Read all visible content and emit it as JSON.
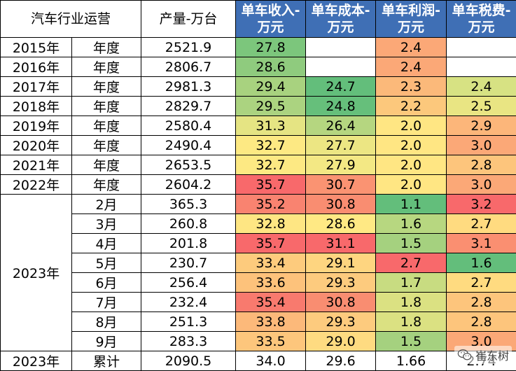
{
  "colors": {
    "header_blue": "#3f6fb5",
    "green": "#63be7b",
    "yellow": "#ffeb84",
    "red": "#f8696b"
  },
  "header": {
    "col1": "汽车行业运营",
    "col2": "产量-万台",
    "col3": "单车收入-万元",
    "col4": "单车成本-万元",
    "col5": "单车利润-万元",
    "col6": "单车税费-万元"
  },
  "rows": [
    {
      "year": "2015年",
      "period": "年度",
      "output": "2521.9",
      "revenue": "27.8",
      "cost": "",
      "profit": "2.4",
      "tax": "",
      "c_rev": "#7cc67c",
      "c_cost": "#ffffff",
      "c_profit": "#fba877",
      "c_tax": "#ffffff"
    },
    {
      "year": "2016年",
      "period": "年度",
      "output": "2806.7",
      "revenue": "28.6",
      "cost": "",
      "profit": "2.4",
      "tax": "",
      "c_rev": "#8fcb7e",
      "c_cost": "#ffffff",
      "c_profit": "#fba877",
      "c_tax": "#ffffff"
    },
    {
      "year": "2017年",
      "period": "年度",
      "output": "2981.3",
      "revenue": "29.4",
      "cost": "24.7",
      "profit": "2.3",
      "tax": "2.4",
      "c_rev": "#a8d27f",
      "c_cost": "#63be7b",
      "c_profit": "#fbb97a",
      "c_tax": "#d7e283"
    },
    {
      "year": "2018年",
      "period": "年度",
      "output": "2829.7",
      "revenue": "29.5",
      "cost": "24.8",
      "profit": "2.2",
      "tax": "2.5",
      "c_rev": "#abd380",
      "c_cost": "#66bf7b",
      "c_profit": "#fcc87c",
      "c_tax": "#e9e583"
    },
    {
      "year": "2019年",
      "period": "年度",
      "output": "2580.4",
      "revenue": "31.3",
      "cost": "26.4",
      "profit": "2.0",
      "tax": "2.9",
      "c_rev": "#e5e483",
      "c_cost": "#b5d680",
      "c_profit": "#ffe683",
      "c_tax": "#fcb67a"
    },
    {
      "year": "2020年",
      "period": "年度",
      "output": "2490.4",
      "revenue": "32.7",
      "cost": "27.7",
      "profit": "2.0",
      "tax": "3.0",
      "c_rev": "#fde983",
      "c_cost": "#ece683",
      "c_profit": "#ffe683",
      "c_tax": "#fba877"
    },
    {
      "year": "2021年",
      "period": "年度",
      "output": "2653.5",
      "revenue": "32.7",
      "cost": "27.9",
      "profit": "2.0",
      "tax": "2.8",
      "c_rev": "#fde983",
      "c_cost": "#f3e884",
      "c_profit": "#ffe683",
      "c_tax": "#fdc57c"
    },
    {
      "year": "2022年",
      "period": "年度",
      "output": "2604.2",
      "revenue": "35.7",
      "cost": "30.7",
      "profit": "2.0",
      "tax": "3.0",
      "c_rev": "#f8696b",
      "c_cost": "#fa9372",
      "c_profit": "#ffe683",
      "c_tax": "#fba877"
    },
    {
      "year": "2023年",
      "period": "2月",
      "output": "365.3",
      "revenue": "35.2",
      "cost": "30.8",
      "profit": "1.1",
      "tax": "3.2",
      "c_rev": "#f98370",
      "c_cost": "#f98d71",
      "c_profit": "#63be7b",
      "c_tax": "#f8696b"
    },
    {
      "year": "",
      "period": "3月",
      "output": "260.8",
      "revenue": "32.8",
      "cost": "28.6",
      "profit": "1.6",
      "tax": "2.7",
      "c_rev": "#fee683",
      "c_cost": "#ffe984",
      "c_profit": "#b7d780",
      "c_tax": "#ffdb80"
    },
    {
      "year": "",
      "period": "4月",
      "output": "201.8",
      "revenue": "35.7",
      "cost": "31.1",
      "profit": "1.5",
      "tax": "3.1",
      "c_rev": "#f8696b",
      "c_cost": "#f8696b",
      "c_profit": "#a5d17f",
      "c_tax": "#fa8f71"
    },
    {
      "year": "",
      "period": "5月",
      "output": "230.7",
      "revenue": "33.4",
      "cost": "29.1",
      "profit": "2.7",
      "tax": "1.6",
      "c_rev": "#fdcb7d",
      "c_cost": "#fed580",
      "c_profit": "#f8696b",
      "c_tax": "#63be7b"
    },
    {
      "year": "",
      "period": "6月",
      "output": "256.4",
      "revenue": "33.6",
      "cost": "29.3",
      "profit": "1.7",
      "tax": "2.7",
      "c_rev": "#fdc27b",
      "c_cost": "#fdcb7e",
      "c_profit": "#c8dc81",
      "c_tax": "#ffdb80"
    },
    {
      "year": "",
      "period": "7月",
      "output": "232.4",
      "revenue": "35.4",
      "cost": "30.8",
      "profit": "1.8",
      "tax": "2.8",
      "c_rev": "#f87a6e",
      "c_cost": "#f98d71",
      "c_profit": "#dbe182",
      "c_tax": "#fdc57c"
    },
    {
      "year": "",
      "period": "8月",
      "output": "251.3",
      "revenue": "33.8",
      "cost": "29.3",
      "profit": "1.8",
      "tax": "2.8",
      "c_rev": "#fcb97a",
      "c_cost": "#fdcb7e",
      "c_profit": "#dbe182",
      "c_tax": "#fdc57c"
    },
    {
      "year": "",
      "period": "9月",
      "output": "283.3",
      "revenue": "33.5",
      "cost": "29.0",
      "profit": "1.5",
      "tax": "3.0",
      "c_rev": "#fdc67c",
      "c_cost": "#fedb81",
      "c_profit": "#a5d17f",
      "c_tax": "#fba877"
    }
  ],
  "summary": {
    "year": "2023年",
    "period": "累计",
    "output": "2090.5",
    "revenue": "34.0",
    "cost": "29.6",
    "profit": "1.66",
    "tax": "2.74"
  },
  "watermark": {
    "text": "崔东树",
    "icon": "wechat-icon"
  }
}
